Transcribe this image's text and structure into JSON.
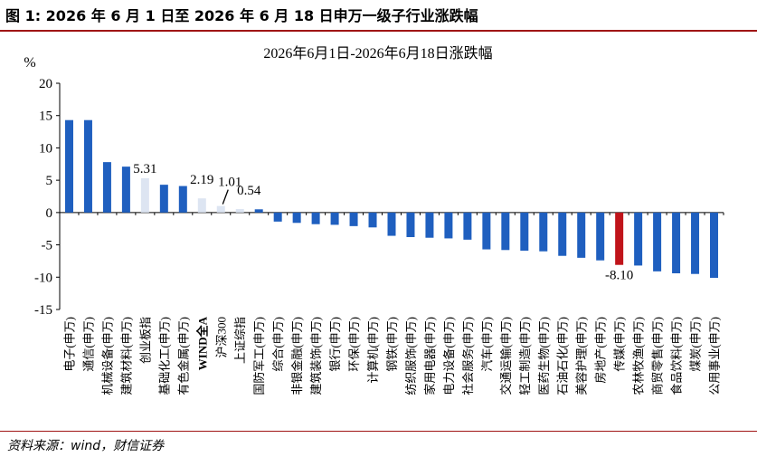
{
  "figure": {
    "title": "图 1:  2026 年 6 月 1 日至 2026 年 6 月 18 日申万一级子行业涨跌幅",
    "source": "资料来源：wind，财信证券"
  },
  "colors": {
    "industry_bar": "#1f5fbf",
    "highlight_bar": "#c0141a",
    "index_bar": "#dde5f2",
    "rule": "#a01515"
  },
  "chart_data": {
    "type": "bar",
    "title": "2026年6月1日-2026年6月18日涨跌幅",
    "ylabel": "%",
    "ylim": [
      -15,
      20
    ],
    "yticks": [
      20,
      15,
      10,
      5,
      0,
      -5,
      -10,
      -15
    ],
    "grid": false,
    "categories": [
      "电子(申万)",
      "通信(申万)",
      "机械设备(申万)",
      "建筑材料(申万)",
      "创业板指",
      "基础化工(申万)",
      "有色金属(申万)",
      "WIND全A",
      "沪深300",
      "上证综指",
      "国防军工(申万)",
      "综合(申万)",
      "非银金融(申万)",
      "建筑装饰(申万)",
      "银行(申万)",
      "环保(申万)",
      "计算机(申万)",
      "钢铁(申万)",
      "纺织服饰(申万)",
      "家用电器(申万)",
      "电力设备(申万)",
      "社会服务(申万)",
      "汽车(申万)",
      "交通运输(申万)",
      "轻工制造(申万)",
      "医药生物(申万)",
      "石油石化(申万)",
      "美容护理(申万)",
      "房地产(申万)",
      "传媒(申万)",
      "农林牧渔(申万)",
      "商贸零售(申万)",
      "食品饮料(申万)",
      "煤炭(申万)",
      "公用事业(申万)"
    ],
    "values": [
      14.3,
      14.3,
      7.8,
      7.1,
      5.31,
      4.3,
      4.1,
      2.19,
      1.01,
      0.54,
      0.5,
      -1.4,
      -1.6,
      -1.8,
      -1.9,
      -2.1,
      -2.3,
      -3.6,
      -3.8,
      -3.9,
      -4.0,
      -4.2,
      -5.7,
      -5.8,
      -5.9,
      -6.0,
      -6.7,
      -7.0,
      -7.4,
      -8.1,
      -8.2,
      -9.1,
      -9.4,
      -9.5,
      -10.1
    ],
    "bar_kind": [
      "industry",
      "industry",
      "industry",
      "industry",
      "index",
      "industry",
      "industry",
      "index",
      "index",
      "index",
      "industry",
      "industry",
      "industry",
      "industry",
      "industry",
      "industry",
      "industry",
      "industry",
      "industry",
      "industry",
      "industry",
      "industry",
      "industry",
      "industry",
      "industry",
      "industry",
      "industry",
      "industry",
      "industry",
      "highlight",
      "industry",
      "industry",
      "industry",
      "industry",
      "industry"
    ],
    "bold_categories": [
      "WIND全A"
    ],
    "data_labels": [
      {
        "category": "创业板指",
        "text": "5.31"
      },
      {
        "category": "WIND全A",
        "text": "2.19"
      },
      {
        "category": "沪深300",
        "text": "1.01"
      },
      {
        "category": "上证综指",
        "text": "0.54"
      },
      {
        "category": "传媒(申万)",
        "text": "-8.10"
      }
    ]
  }
}
